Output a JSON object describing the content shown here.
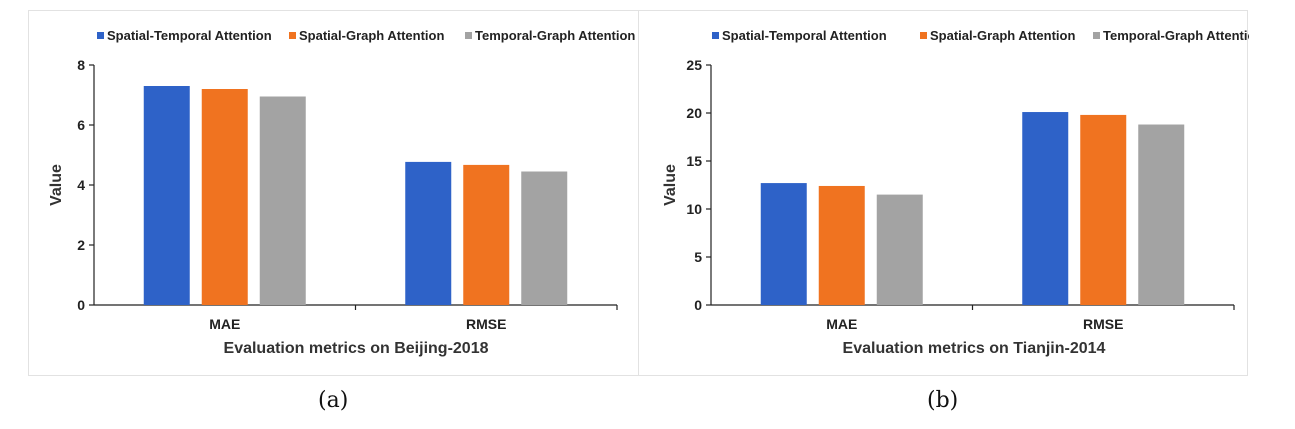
{
  "chart_data": [
    {
      "type": "bar",
      "title": "",
      "xlabel": "Evaluation metrics on Beijing-2018",
      "ylabel": "Value",
      "categories": [
        "MAE",
        "RMSE"
      ],
      "series": [
        {
          "name": "Spatial-Temporal Attention",
          "values": [
            7.3,
            4.77
          ]
        },
        {
          "name": "Spatial-Graph Attention",
          "values": [
            7.2,
            4.67
          ]
        },
        {
          "name": "Temporal-Graph Attention",
          "values": [
            6.95,
            4.45
          ]
        }
      ],
      "ylim": [
        0,
        8
      ],
      "yticks": [
        "0",
        "2",
        "4",
        "6",
        "8"
      ],
      "legend": "top",
      "caption": "(a)"
    },
    {
      "type": "bar",
      "title": "",
      "xlabel": "Evaluation metrics on Tianjin-2014",
      "ylabel": "Value",
      "categories": [
        "MAE",
        "RMSE"
      ],
      "series": [
        {
          "name": "Spatial-Temporal Attention",
          "values": [
            12.7,
            20.1
          ]
        },
        {
          "name": "Spatial-Graph Attention",
          "values": [
            12.4,
            19.8
          ]
        },
        {
          "name": "Temporal-Graph Attention",
          "values": [
            11.5,
            18.8
          ]
        }
      ],
      "ylim": [
        0,
        25
      ],
      "yticks": [
        "0",
        "5",
        "10",
        "15",
        "20",
        "25"
      ],
      "legend": "top",
      "caption": "(b)"
    }
  ],
  "colors": {
    "series": [
      "#2E62C8",
      "#F07320",
      "#A3A3A3"
    ],
    "axis": "#222222"
  }
}
